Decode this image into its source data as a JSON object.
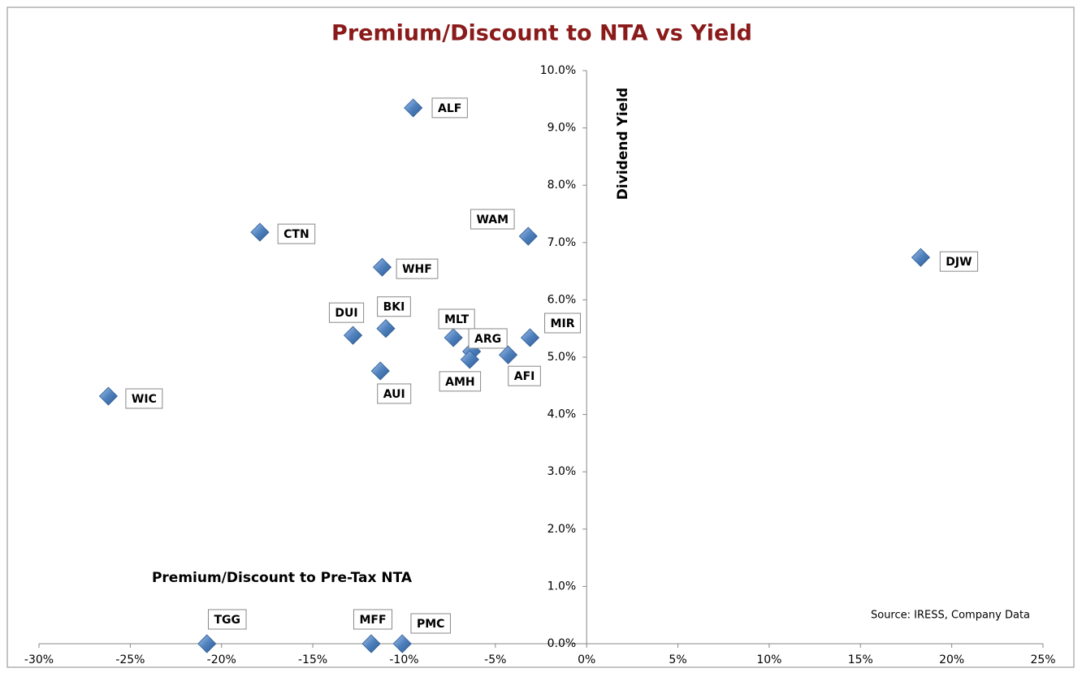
{
  "chart_data": {
    "type": "scatter",
    "title": "Premium/Discount  to NTA vs Yield",
    "x_label": "Premium/Discount to Pre-Tax NTA",
    "y_label": "Dividend Yield",
    "source": "Source: IRESS, Company Data",
    "color": "#4f81bd",
    "labels": [
      "ALF",
      "CTN",
      "WAM",
      "DJW",
      "WHF",
      "BKI",
      "DUI",
      "MLT",
      "MIR",
      "ARG",
      "AMH",
      "AFI",
      "AUI",
      "WIC",
      "TGG",
      "MFF",
      "PMC"
    ],
    "x": [
      -9.5,
      -17.9,
      -3.2,
      18.3,
      -11.2,
      -11.0,
      -12.8,
      -7.3,
      -3.1,
      -6.3,
      -6.4,
      -4.3,
      -11.3,
      -26.2,
      -20.8,
      -11.8,
      -10.1
    ],
    "values": [
      9.35,
      7.18,
      7.11,
      6.74,
      6.57,
      5.5,
      5.38,
      5.34,
      5.34,
      5.1,
      4.96,
      5.04,
      4.76,
      4.32,
      0,
      0,
      0
    ],
    "xlim": [
      -30,
      25
    ],
    "ylim": [
      0,
      10
    ],
    "xticks": [
      {
        "value": -30,
        "label": "-30%"
      },
      {
        "value": -25,
        "label": "-25%"
      },
      {
        "value": -20,
        "label": "-20%"
      },
      {
        "value": -15,
        "label": "-15%"
      },
      {
        "value": -10,
        "label": "-10%"
      },
      {
        "value": -5,
        "label": "-5%"
      },
      {
        "value": 0,
        "label": "0%"
      },
      {
        "value": 5,
        "label": "5%"
      },
      {
        "value": 10,
        "label": "10%"
      },
      {
        "value": 15,
        "label": "15%"
      },
      {
        "value": 20,
        "label": "20%"
      },
      {
        "value": 25,
        "label": "25%"
      }
    ],
    "yticks": [
      {
        "value": 0,
        "label": "0.0%"
      },
      {
        "value": 1,
        "label": "1.0%"
      },
      {
        "value": 2,
        "label": "2.0%"
      },
      {
        "value": 3,
        "label": "3.0%"
      },
      {
        "value": 4,
        "label": "4.0%"
      },
      {
        "value": 5,
        "label": "5.0%"
      },
      {
        "value": 6,
        "label": "6.0%"
      },
      {
        "value": 7,
        "label": "7.0%"
      },
      {
        "value": 8,
        "label": "8.0%"
      },
      {
        "value": 9,
        "label": "9.0%"
      },
      {
        "value": 10,
        "label": "10.0%"
      }
    ]
  }
}
